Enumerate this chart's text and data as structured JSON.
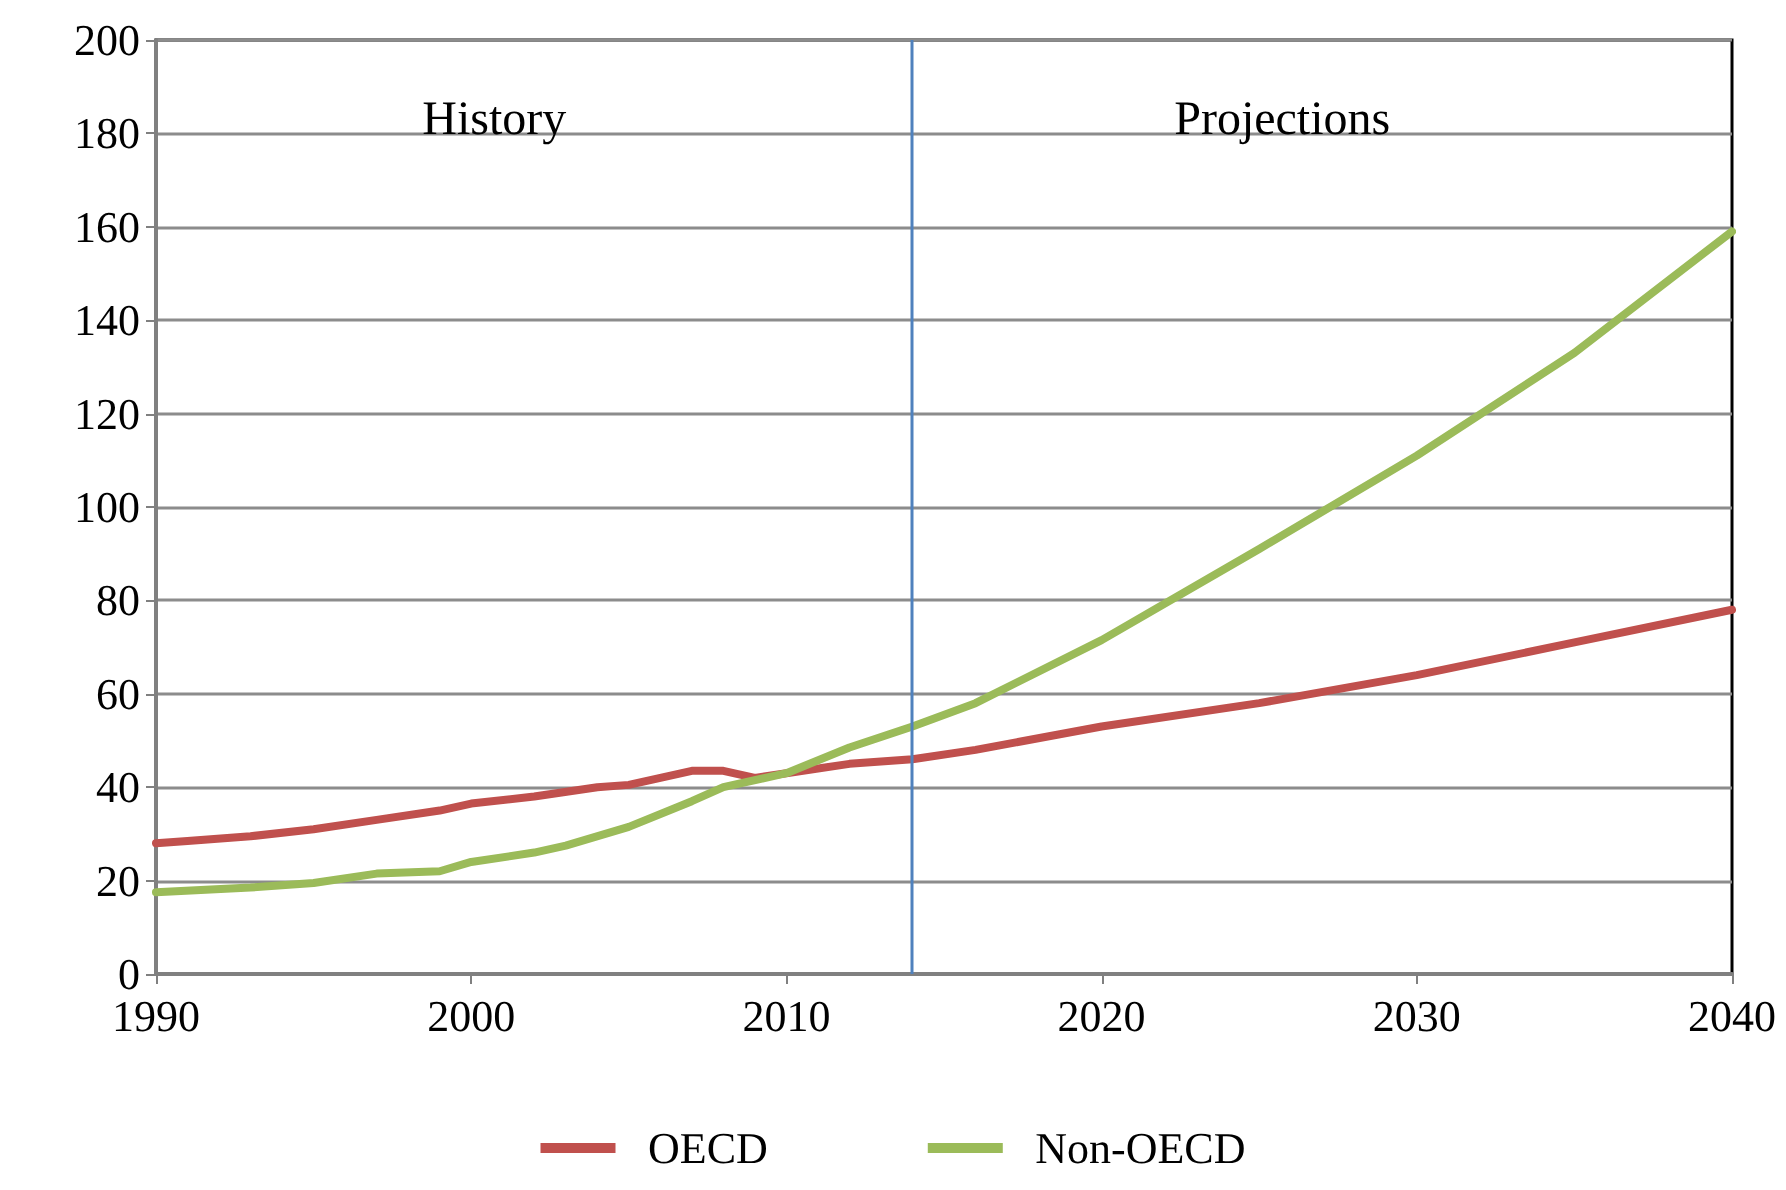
{
  "chart_data": {
    "type": "line",
    "xlim": [
      1990,
      2040
    ],
    "xticks": [
      1990,
      2000,
      2010,
      2020,
      2030,
      2040
    ],
    "ylim": [
      0,
      200
    ],
    "yticks": [
      0,
      20,
      40,
      60,
      80,
      100,
      120,
      140,
      160,
      180,
      200
    ],
    "grid": "y",
    "legend": "bottom",
    "marker": "none",
    "line_style": "solid",
    "series": [
      {
        "name": "OECD",
        "color": "#c0504d",
        "x": [
          1990,
          1991,
          1993,
          1995,
          1997,
          1999,
          2000,
          2002,
          2004,
          2005,
          2007,
          2008,
          2009,
          2010,
          2012,
          2014,
          2016,
          2020,
          2025,
          2030,
          2035,
          2040
        ],
        "values": [
          28,
          28.5,
          29.5,
          31,
          33,
          35,
          36.5,
          38,
          40,
          40.5,
          43.5,
          43.5,
          42,
          43,
          45,
          46,
          48,
          53,
          58,
          64,
          71,
          78
        ]
      },
      {
        "name": "Non-OECD",
        "color": "#9bbb59",
        "x": [
          1990,
          1993,
          1995,
          1997,
          1999,
          2000,
          2002,
          2003,
          2005,
          2007,
          2008,
          2010,
          2012,
          2014,
          2016,
          2020,
          2025,
          2030,
          2035,
          2040
        ],
        "values": [
          17.5,
          18.5,
          19.5,
          21.5,
          22,
          24,
          26,
          27.5,
          31.5,
          37,
          40,
          43,
          48.5,
          53,
          58,
          71.5,
          91,
          111,
          133,
          159
        ]
      }
    ],
    "ref_lines": [
      {
        "axis": "x",
        "value": 2014,
        "color": "#4f81bd",
        "line_style": "solid"
      }
    ],
    "annotations": [
      "History",
      "Projections"
    ]
  }
}
